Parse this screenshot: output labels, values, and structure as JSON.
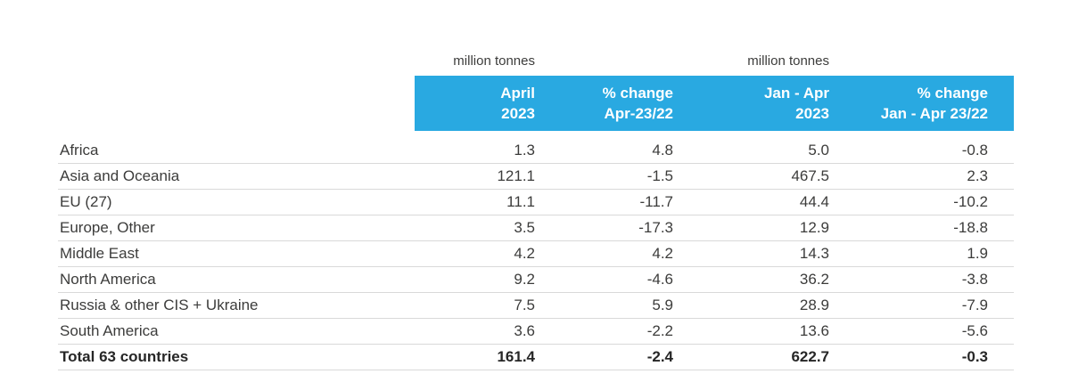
{
  "chart_data": {
    "type": "table",
    "unit_labels": {
      "monthly": "million tonnes",
      "cumulative": "million tonnes"
    },
    "columns": [
      {
        "line1": "April",
        "line2": "2023"
      },
      {
        "line1": "% change",
        "line2": "Apr-23/22"
      },
      {
        "line1": "Jan - Apr",
        "line2": "2023"
      },
      {
        "line1": "% change",
        "line2": "Jan - Apr 23/22"
      }
    ],
    "rows": [
      {
        "region": "Africa",
        "april_2023": "1.3",
        "pct_change_apr": "4.8",
        "jan_apr_2023": "5.0",
        "pct_change_jan_apr": "-0.8"
      },
      {
        "region": "Asia and Oceania",
        "april_2023": "121.1",
        "pct_change_apr": "-1.5",
        "jan_apr_2023": "467.5",
        "pct_change_jan_apr": "2.3"
      },
      {
        "region": "EU (27)",
        "april_2023": "11.1",
        "pct_change_apr": "-11.7",
        "jan_apr_2023": "44.4",
        "pct_change_jan_apr": "-10.2"
      },
      {
        "region": "Europe, Other",
        "april_2023": "3.5",
        "pct_change_apr": "-17.3",
        "jan_apr_2023": "12.9",
        "pct_change_jan_apr": "-18.8"
      },
      {
        "region": "Middle East",
        "april_2023": "4.2",
        "pct_change_apr": "4.2",
        "jan_apr_2023": "14.3",
        "pct_change_jan_apr": "1.9"
      },
      {
        "region": "North America",
        "april_2023": "9.2",
        "pct_change_apr": "-4.6",
        "jan_apr_2023": "36.2",
        "pct_change_jan_apr": "-3.8"
      },
      {
        "region": "Russia & other CIS + Ukraine",
        "april_2023": "7.5",
        "pct_change_apr": "5.9",
        "jan_apr_2023": "28.9",
        "pct_change_jan_apr": "-7.9"
      },
      {
        "region": "South America",
        "april_2023": "3.6",
        "pct_change_apr": "-2.2",
        "jan_apr_2023": "13.6",
        "pct_change_jan_apr": "-5.6"
      }
    ],
    "total_row": {
      "region": "Total 63 countries",
      "april_2023": "161.4",
      "pct_change_apr": "-2.4",
      "jan_apr_2023": "622.7",
      "pct_change_jan_apr": "-0.3"
    }
  },
  "colors": {
    "header_bg": "#29a9e1",
    "header_text": "#ffffff",
    "body_text": "#3c3c3b",
    "row_border": "#d9d9d9"
  }
}
